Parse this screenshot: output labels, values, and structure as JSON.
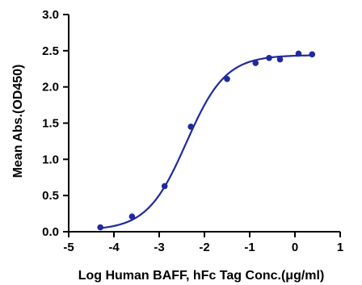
{
  "chart_data": {
    "type": "scatter",
    "title": "",
    "xlabel": "Log Human BAFF, hFc Tag Conc.(μg/ml)",
    "ylabel": "Mean Abs.(OD450)",
    "xlim": [
      -5,
      1
    ],
    "ylim": [
      0,
      3.0
    ],
    "x_ticks": [
      -5,
      -4,
      -3,
      -2,
      -1,
      0,
      1
    ],
    "x_tick_labels": [
      "-5",
      "-4",
      "-3",
      "-2",
      "-1",
      "0",
      "1"
    ],
    "y_ticks": [
      0,
      0.5,
      1.0,
      1.5,
      2.0,
      2.5,
      3.0
    ],
    "y_tick_labels": [
      "0.0",
      "0.5",
      "1.0",
      "1.5",
      "2.0",
      "2.5",
      "3.0"
    ],
    "grid": false,
    "legend": "none",
    "series": [
      {
        "color": "#1f2a9e",
        "x": [
          -4.3,
          -3.6,
          -2.88,
          -2.3,
          -1.5,
          -0.87,
          -0.57,
          -0.33,
          0.08,
          0.38
        ],
        "y": [
          0.06,
          0.21,
          0.63,
          1.45,
          2.11,
          2.33,
          2.4,
          2.38,
          2.46,
          2.45
        ]
      }
    ],
    "fit_curve": {
      "model": "four-parameter logistic",
      "bottom": 0.02,
      "top": 2.44,
      "log_ec50": -2.4,
      "hill_slope": 1.0,
      "x_range": [
        -4.3,
        0.38
      ]
    }
  }
}
